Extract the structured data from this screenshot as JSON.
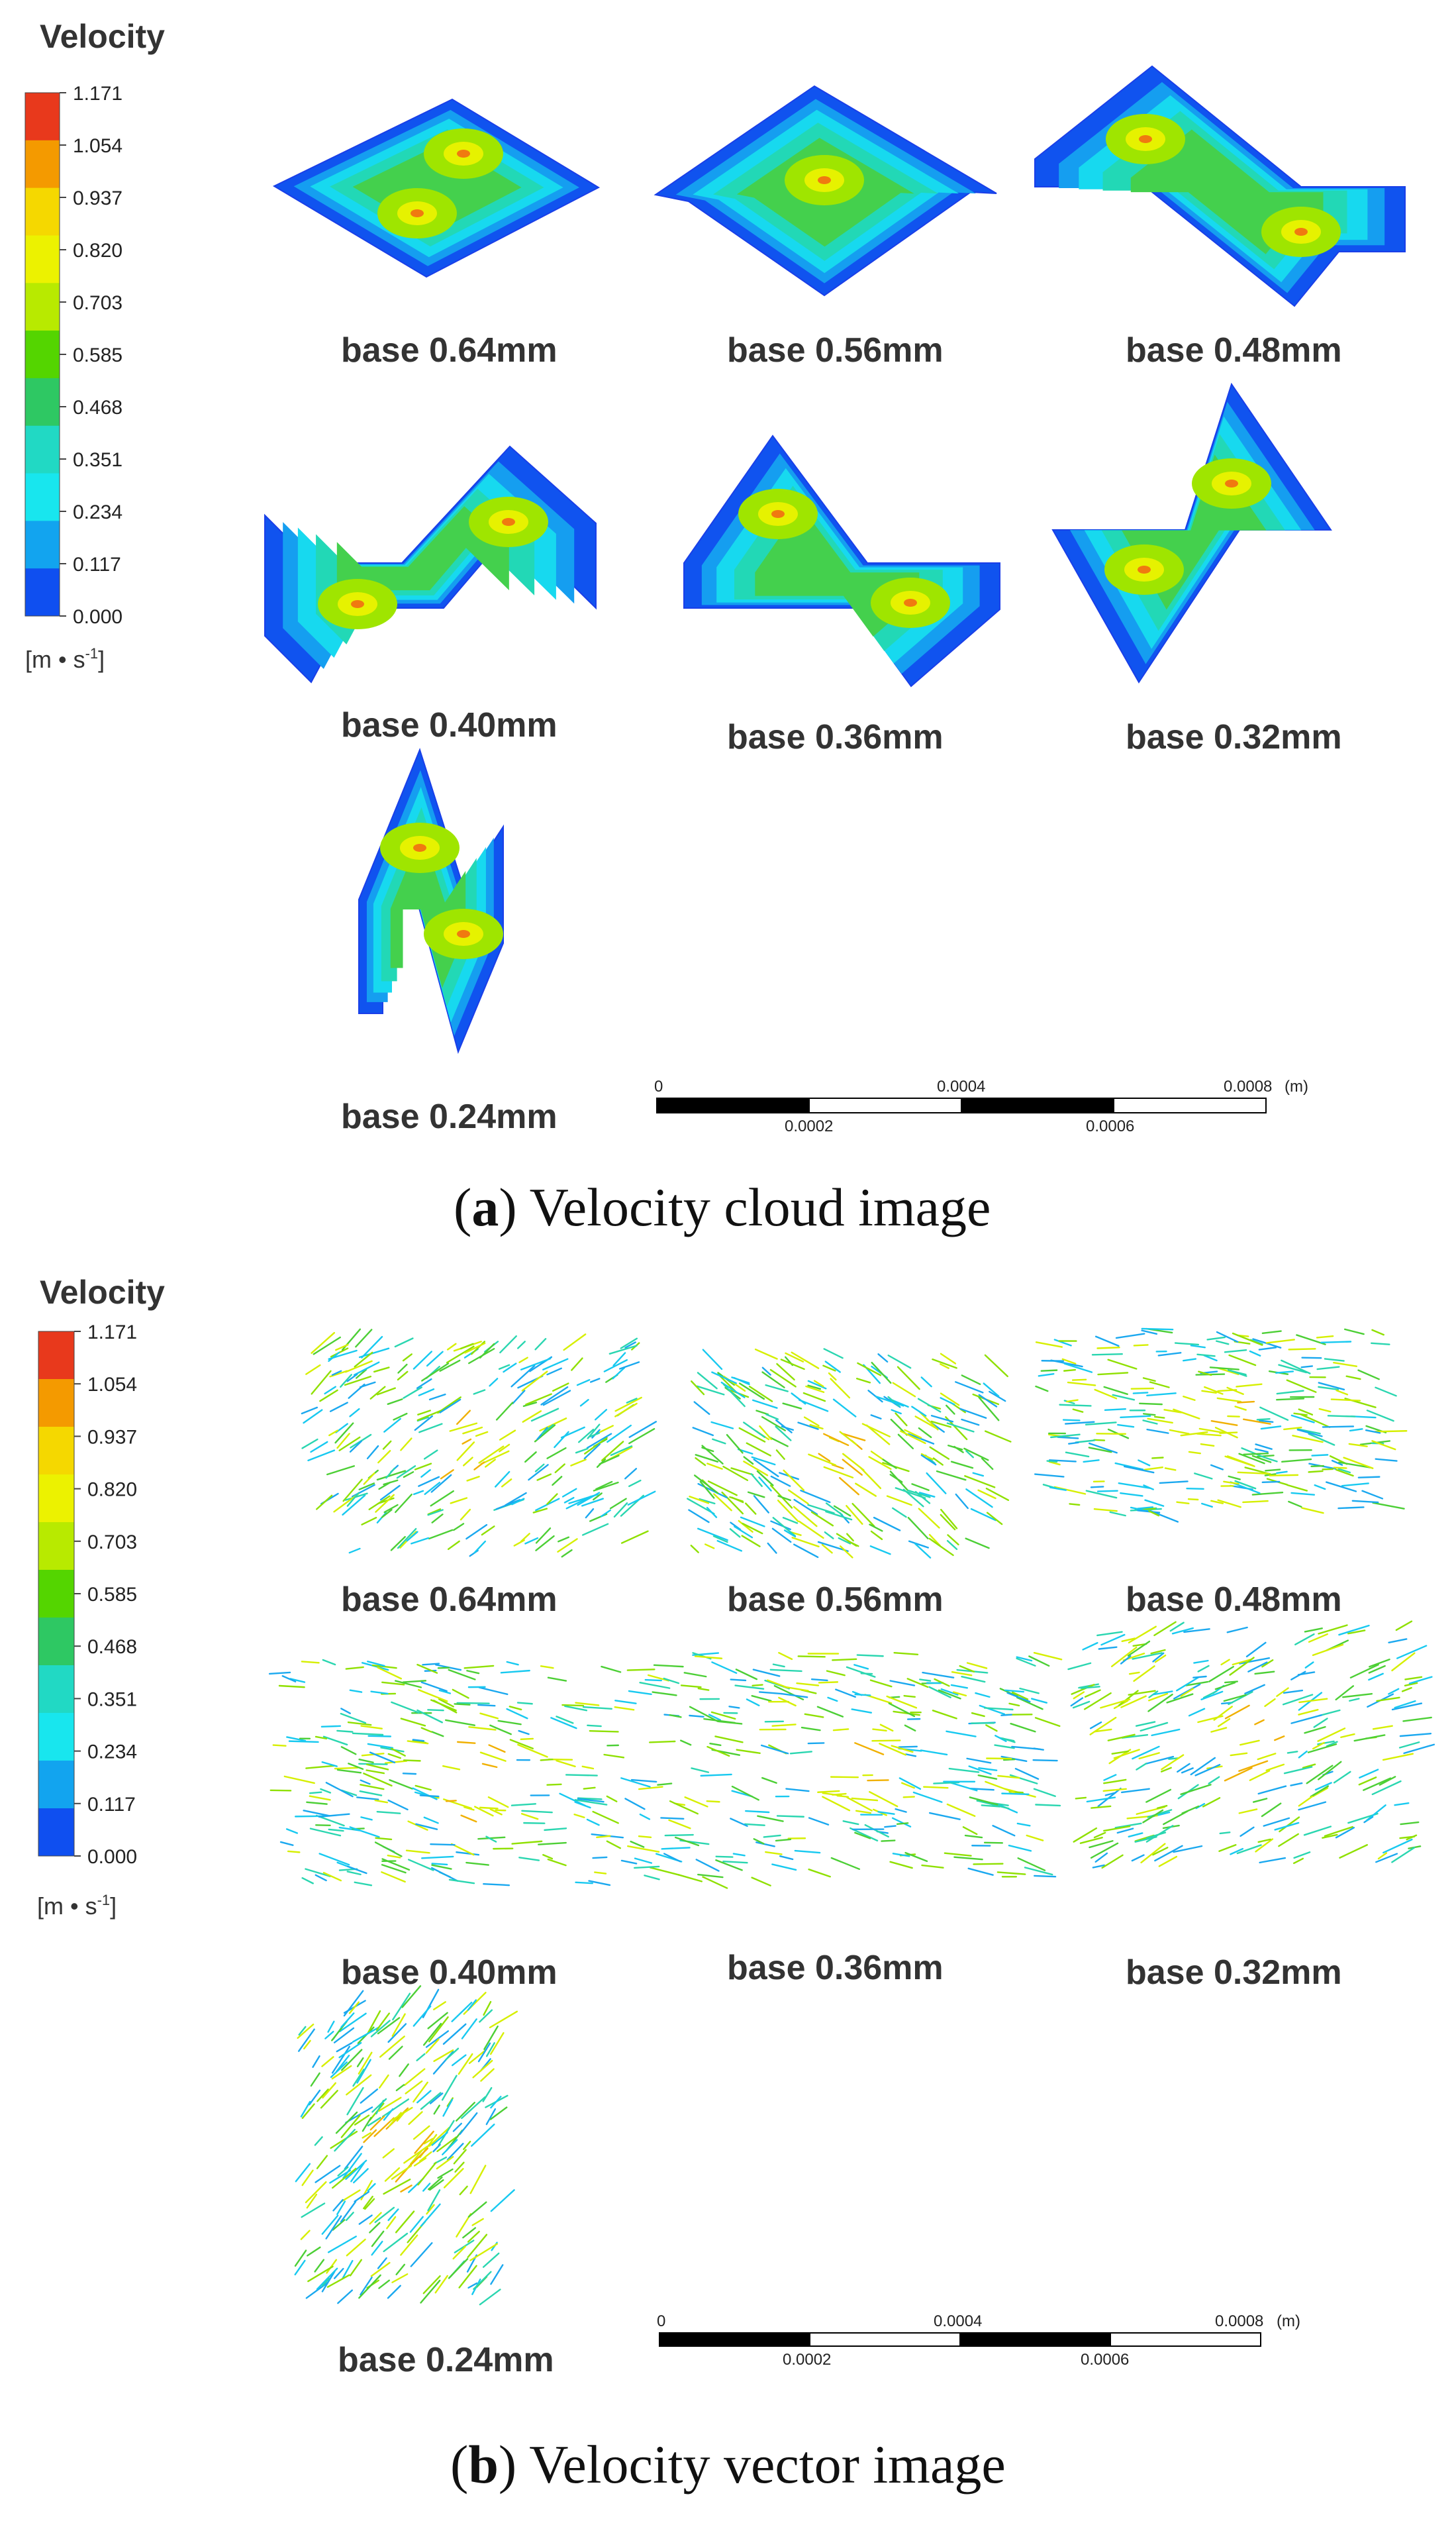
{
  "panels": [
    {
      "id": "a",
      "legend": {
        "title": "Velocity",
        "ticks": [
          "1.171",
          "1.054",
          "0.937",
          "0.820",
          "0.703",
          "0.585",
          "0.468",
          "0.351",
          "0.234",
          "0.117",
          "0.000"
        ],
        "unit_prefix": "[m • s",
        "unit_exp": "-1",
        "unit_suffix": "]",
        "colors": [
          "#e8391c",
          "#f49a00",
          "#f5d800",
          "#ecf200",
          "#b8ea00",
          "#54d500",
          "#2ec863",
          "#21d9c4",
          "#18e6ee",
          "#12a4ef",
          "#0f4ff0"
        ]
      },
      "caption": {
        "letter": "a",
        "text": ") Velocity cloud image",
        "open": "("
      },
      "items": [
        {
          "label": "base 0.64mm",
          "shape": "rhombus-wide"
        },
        {
          "label": "base 0.56mm",
          "shape": "rhombus"
        },
        {
          "label": "base 0.48mm",
          "shape": "zigzag-down"
        },
        {
          "label": "base 0.40mm",
          "shape": "zigzag-up"
        },
        {
          "label": "base 0.36mm",
          "shape": "zigzag-down-narrow"
        },
        {
          "label": "base 0.32mm",
          "shape": "zigzag-diagonal"
        },
        {
          "label": "base 0.24mm",
          "shape": "zigzag-tall"
        }
      ],
      "scalebar": {
        "top_labels": [
          "0",
          "0.0004",
          "0.0008"
        ],
        "bottom_labels": [
          "0.0002",
          "0.0006"
        ],
        "unit": "(m)"
      }
    },
    {
      "id": "b",
      "legend": {
        "title": "Velocity",
        "ticks": [
          "1.171",
          "1.054",
          "0.937",
          "0.820",
          "0.703",
          "0.585",
          "0.468",
          "0.351",
          "0.234",
          "0.117",
          "0.000"
        ],
        "unit_prefix": "[m • s",
        "unit_exp": "-1",
        "unit_suffix": "]",
        "colors": [
          "#e8391c",
          "#f49a00",
          "#f5d800",
          "#ecf200",
          "#b8ea00",
          "#54d500",
          "#2ec863",
          "#21d9c4",
          "#18e6ee",
          "#12a4ef",
          "#0f4ff0"
        ]
      },
      "caption": {
        "letter": "b",
        "text": ") Velocity vector image",
        "open": "("
      },
      "items": [
        {
          "label": "base 0.64mm",
          "shape": "rhombus-wide"
        },
        {
          "label": "base 0.56mm",
          "shape": "rhombus"
        },
        {
          "label": "base 0.48mm",
          "shape": "zigzag-down"
        },
        {
          "label": "base 0.40mm",
          "shape": "zigzag-up"
        },
        {
          "label": "base 0.36mm",
          "shape": "zigzag-down"
        },
        {
          "label": "base 0.32mm",
          "shape": "zigzag-diagonal"
        },
        {
          "label": "base 0.24mm",
          "shape": "zigzag-tall"
        }
      ],
      "scalebar": {
        "top_labels": [
          "0",
          "0.0004",
          "0.0008"
        ],
        "bottom_labels": [
          "0.0002",
          "0.0006"
        ],
        "unit": "(m)"
      }
    }
  ]
}
